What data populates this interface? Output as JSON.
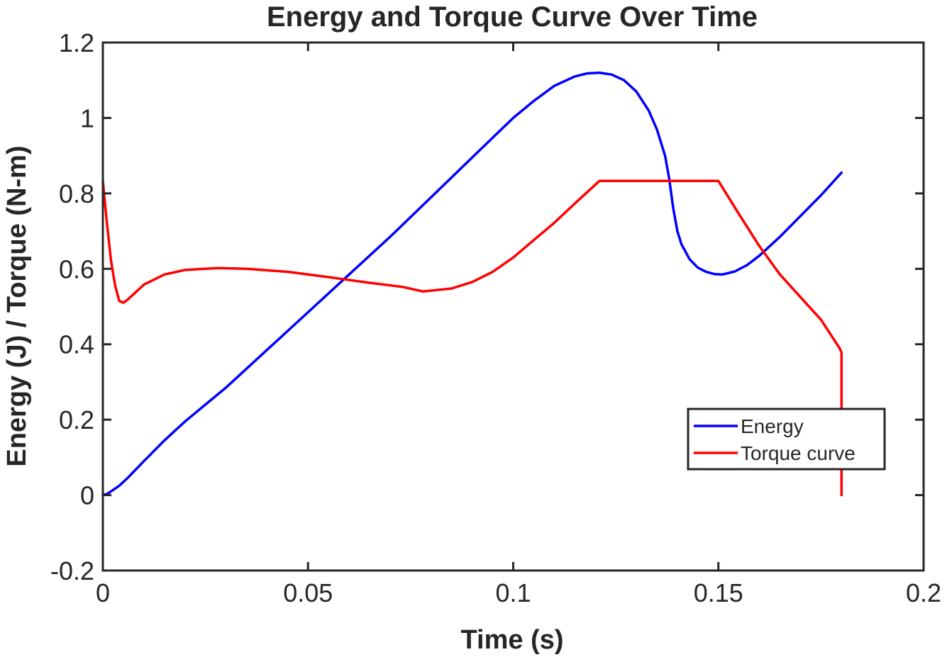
{
  "chart_data": {
    "type": "line",
    "title": "Energy and Torque Curve Over Time",
    "xlabel": "Time (s)",
    "ylabel": "Energy (J) / Torque (N-m)",
    "xlim": [
      0,
      0.2
    ],
    "ylim": [
      -0.2,
      1.2
    ],
    "xticks": [
      0,
      0.05,
      0.1,
      0.15,
      0.2
    ],
    "xtick_labels": [
      "0",
      "0.05",
      "0.1",
      "0.15",
      "0.2"
    ],
    "yticks": [
      -0.2,
      0,
      0.2,
      0.4,
      0.6,
      0.8,
      1,
      1.2
    ],
    "ytick_labels": [
      "-0.2",
      "0",
      "0.2",
      "0.4",
      "0.6",
      "0.8",
      "1",
      "1.2"
    ],
    "grid": false,
    "legend": "inside-lower-right",
    "series": [
      {
        "name": "Energy",
        "color": "#0000ff",
        "x": [
          0,
          0.001,
          0.002,
          0.004,
          0.006,
          0.01,
          0.015,
          0.02,
          0.03,
          0.04,
          0.05,
          0.06,
          0.07,
          0.08,
          0.09,
          0.1,
          0.105,
          0.11,
          0.115,
          0.118,
          0.121,
          0.124,
          0.127,
          0.13,
          0.133,
          0.135,
          0.137,
          0.138,
          0.139,
          0.14,
          0.141,
          0.143,
          0.145,
          0.147,
          0.149,
          0.151,
          0.154,
          0.157,
          0.16,
          0.165,
          0.17,
          0.175,
          0.18
        ],
        "values": [
          0,
          0.003,
          0.01,
          0.025,
          0.045,
          0.09,
          0.145,
          0.195,
          0.285,
          0.385,
          0.485,
          0.585,
          0.685,
          0.79,
          0.895,
          1.0,
          1.045,
          1.085,
          1.11,
          1.118,
          1.12,
          1.115,
          1.1,
          1.07,
          1.02,
          0.97,
          0.9,
          0.84,
          0.76,
          0.7,
          0.665,
          0.625,
          0.603,
          0.592,
          0.586,
          0.585,
          0.593,
          0.61,
          0.635,
          0.685,
          0.74,
          0.795,
          0.855
        ]
      },
      {
        "name": "Torque curve",
        "color": "#ff0000",
        "x": [
          0,
          0.001,
          0.002,
          0.003,
          0.004,
          0.005,
          0.006,
          0.008,
          0.01,
          0.015,
          0.02,
          0.028,
          0.035,
          0.045,
          0.055,
          0.065,
          0.073,
          0.078,
          0.085,
          0.09,
          0.095,
          0.1,
          0.105,
          0.11,
          0.115,
          0.121,
          0.13,
          0.14,
          0.15,
          0.155,
          0.16,
          0.165,
          0.17,
          0.175,
          0.178,
          0.1795,
          0.18,
          0.18,
          0.18
        ],
        "values": [
          0.833,
          0.72,
          0.62,
          0.555,
          0.515,
          0.51,
          0.518,
          0.538,
          0.558,
          0.585,
          0.597,
          0.602,
          0.6,
          0.592,
          0.578,
          0.563,
          0.552,
          0.54,
          0.548,
          0.565,
          0.592,
          0.63,
          0.676,
          0.722,
          0.773,
          0.833,
          0.833,
          0.833,
          0.833,
          0.745,
          0.66,
          0.585,
          0.525,
          0.465,
          0.415,
          0.39,
          0.378,
          0.2,
          0
        ]
      }
    ]
  }
}
